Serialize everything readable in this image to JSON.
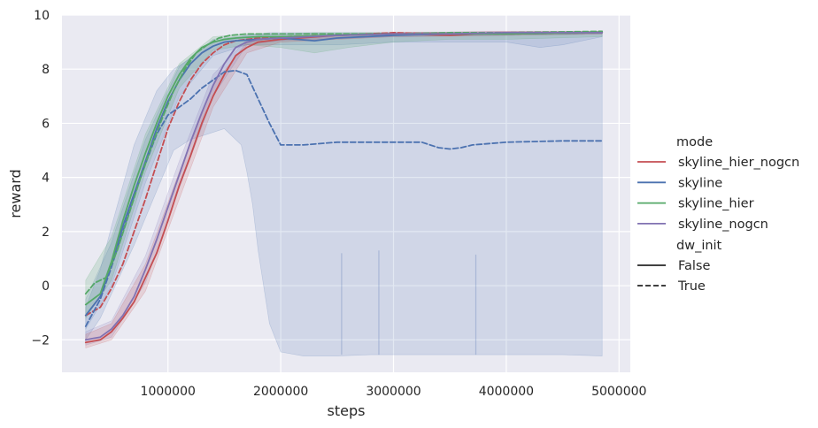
{
  "chart_data": {
    "type": "line",
    "xlabel": "steps",
    "ylabel": "reward",
    "xlim": [
      60000,
      5100000
    ],
    "ylim": [
      -3.2,
      10
    ],
    "xticks": [
      1000000,
      2000000,
      3000000,
      4000000,
      5000000
    ],
    "xtick_labels": [
      "1000000",
      "2000000",
      "3000000",
      "4000000",
      "5000000"
    ],
    "yticks": [
      -2,
      0,
      2,
      4,
      6,
      8,
      10
    ],
    "ytick_labels": [
      "−2",
      "0",
      "2",
      "4",
      "6",
      "8",
      "10"
    ],
    "grid": true,
    "legend": {
      "placement": "right",
      "mode_title": "mode",
      "style_title": "dw_init",
      "style_entries": [
        {
          "label": "False",
          "dash": "solid"
        },
        {
          "label": "True",
          "dash": "dashed"
        }
      ]
    },
    "series": [
      {
        "name": "skyline_hier_nogcn",
        "dw_init": "False",
        "color": "#c44e52",
        "x": [
          270000,
          400000,
          500000,
          600000,
          700000,
          800000,
          900000,
          1000000,
          1100000,
          1200000,
          1300000,
          1400000,
          1500000,
          1600000,
          1700000,
          1800000,
          2000000,
          2500000,
          3000000,
          3500000,
          4000000,
          4850000
        ],
        "y": [
          -2.1,
          -2.0,
          -1.7,
          -1.2,
          -0.6,
          0.3,
          1.2,
          2.4,
          3.7,
          4.8,
          6.0,
          7.0,
          7.8,
          8.5,
          8.8,
          9.0,
          9.1,
          9.25,
          9.3,
          9.25,
          9.35,
          9.35
        ]
      },
      {
        "name": "skyline_hier_nogcn",
        "dw_init": "True",
        "color": "#c44e52",
        "x": [
          270000,
          400000,
          500000,
          600000,
          700000,
          800000,
          900000,
          1000000,
          1100000,
          1200000,
          1300000,
          1400000,
          1500000,
          1600000,
          1800000,
          2000000,
          2500000,
          3000000,
          3500000,
          4000000,
          4850000
        ],
        "y": [
          -1.1,
          -0.8,
          -0.1,
          0.8,
          2.0,
          3.2,
          4.5,
          5.8,
          6.8,
          7.6,
          8.2,
          8.6,
          8.9,
          9.05,
          9.15,
          9.2,
          9.25,
          9.35,
          9.3,
          9.3,
          9.35
        ]
      },
      {
        "name": "skyline",
        "dw_init": "False",
        "color": "#4c72b0",
        "x": [
          270000,
          400000,
          500000,
          600000,
          700000,
          800000,
          900000,
          1000000,
          1100000,
          1200000,
          1300000,
          1400000,
          1500000,
          1600000,
          1800000,
          2000000,
          2300000,
          2500000,
          3000000,
          3500000,
          4000000,
          4850000
        ],
        "y": [
          -1.1,
          -0.4,
          0.8,
          2.2,
          3.4,
          4.6,
          5.8,
          6.8,
          7.6,
          8.2,
          8.6,
          8.85,
          9.0,
          9.05,
          9.1,
          9.15,
          9.05,
          9.15,
          9.25,
          9.3,
          9.3,
          9.35
        ]
      },
      {
        "name": "skyline",
        "dw_init": "True",
        "color": "#4c72b0",
        "x": [
          270000,
          400000,
          500000,
          600000,
          700000,
          800000,
          900000,
          1000000,
          1100000,
          1200000,
          1300000,
          1400000,
          1500000,
          1600000,
          1700000,
          1800000,
          1900000,
          2000000,
          2200000,
          2500000,
          3000000,
          3250000,
          3400000,
          3500000,
          3600000,
          3700000,
          4000000,
          4500000,
          4850000
        ],
        "y": [
          -1.5,
          -0.5,
          0.7,
          2.0,
          3.3,
          4.5,
          5.6,
          6.3,
          6.6,
          6.9,
          7.3,
          7.6,
          7.9,
          7.95,
          7.8,
          6.9,
          6.0,
          5.2,
          5.2,
          5.3,
          5.3,
          5.3,
          5.1,
          5.05,
          5.1,
          5.2,
          5.3,
          5.35,
          5.35
        ]
      },
      {
        "name": "skyline_hier",
        "dw_init": "False",
        "color": "#55a868",
        "x": [
          270000,
          400000,
          500000,
          600000,
          700000,
          800000,
          900000,
          1000000,
          1100000,
          1200000,
          1300000,
          1400000,
          1500000,
          1600000,
          1800000,
          2000000,
          2500000,
          3000000,
          3500000,
          4000000,
          4850000
        ],
        "y": [
          -0.7,
          -0.3,
          0.9,
          2.4,
          3.7,
          4.9,
          6.0,
          7.0,
          7.8,
          8.4,
          8.8,
          9.0,
          9.1,
          9.15,
          9.2,
          9.2,
          9.25,
          9.3,
          9.3,
          9.3,
          9.35
        ]
      },
      {
        "name": "skyline_hier",
        "dw_init": "True",
        "color": "#55a868",
        "x": [
          270000,
          350000,
          450000,
          550000,
          650000,
          750000,
          850000,
          950000,
          1050000,
          1150000,
          1250000,
          1350000,
          1450000,
          1550000,
          1700000,
          2000000,
          2500000,
          3000000,
          3500000,
          4000000,
          4850000
        ],
        "y": [
          -0.3,
          0.1,
          0.3,
          1.3,
          2.6,
          3.9,
          5.1,
          6.2,
          7.2,
          8.0,
          8.6,
          8.9,
          9.15,
          9.25,
          9.3,
          9.3,
          9.3,
          9.3,
          9.35,
          9.35,
          9.4
        ]
      },
      {
        "name": "skyline_nogcn",
        "dw_init": "False",
        "color": "#8172b2",
        "x": [
          270000,
          400000,
          500000,
          600000,
          700000,
          800000,
          900000,
          1000000,
          1100000,
          1200000,
          1300000,
          1400000,
          1500000,
          1600000,
          1700000,
          1800000,
          2000000,
          2500000,
          3000000,
          3500000,
          4000000,
          4850000
        ],
        "y": [
          -2.0,
          -1.9,
          -1.6,
          -1.1,
          -0.4,
          0.6,
          1.7,
          2.9,
          4.1,
          5.3,
          6.4,
          7.4,
          8.2,
          8.8,
          9.0,
          9.1,
          9.15,
          9.25,
          9.3,
          9.3,
          9.35,
          9.35
        ]
      }
    ],
    "bands": [
      {
        "series": "skyline / True",
        "color": "#4c72b0",
        "opacity": 0.16,
        "x": [
          270000,
          400000,
          500000,
          700000,
          900000,
          1050000,
          1200000,
          1350000,
          1500000,
          1650000,
          1700000,
          1750000,
          1800000,
          1900000,
          2000000,
          2200000,
          2500000,
          2800000,
          3000000,
          3500000,
          4000000,
          4500000,
          4850000
        ],
        "upper": [
          -0.8,
          0.6,
          2.2,
          5.2,
          7.2,
          8.0,
          8.4,
          8.9,
          9.1,
          9.2,
          9.25,
          9.3,
          9.3,
          9.35,
          9.35,
          9.35,
          9.35,
          9.35,
          9.35,
          9.35,
          9.35,
          9.35,
          9.35
        ],
        "lower": [
          -2.0,
          -1.2,
          -0.3,
          1.5,
          3.5,
          5.0,
          5.4,
          5.6,
          5.8,
          5.2,
          4.2,
          3.0,
          1.3,
          -1.4,
          -2.45,
          -2.6,
          -2.6,
          -2.55,
          -2.55,
          -2.55,
          -2.55,
          -2.55,
          -2.6
        ]
      },
      {
        "series": "skyline / False",
        "color": "#4c72b0",
        "opacity": 0.14,
        "x": [
          270000,
          500000,
          800000,
          1100000,
          1400000,
          1700000,
          2000000,
          2500000,
          3000000,
          3500000,
          4000000,
          4300000,
          4500000,
          4850000
        ],
        "upper": [
          -0.5,
          1.6,
          5.4,
          8.1,
          9.1,
          9.25,
          9.3,
          9.3,
          9.35,
          9.35,
          9.35,
          9.35,
          9.35,
          9.4
        ],
        "lower": [
          -1.6,
          0.0,
          3.8,
          7.0,
          8.5,
          8.9,
          8.9,
          8.9,
          9.0,
          9.0,
          9.0,
          8.8,
          8.9,
          9.2
        ]
      },
      {
        "series": "skyline_hier / False",
        "color": "#55a868",
        "opacity": 0.18,
        "x": [
          270000,
          500000,
          800000,
          1100000,
          1400000,
          1700000,
          2000000,
          2300000,
          2600000,
          3000000,
          3500000,
          4000000,
          4850000
        ],
        "upper": [
          0.2,
          1.8,
          5.6,
          8.2,
          9.2,
          9.3,
          9.3,
          9.35,
          9.35,
          9.35,
          9.35,
          9.35,
          9.4
        ],
        "lower": [
          -1.2,
          0.2,
          4.2,
          7.3,
          8.7,
          8.9,
          8.8,
          8.6,
          8.8,
          9.0,
          9.1,
          9.1,
          9.2
        ]
      },
      {
        "series": "skyline_nogcn / False",
        "color": "#8172b2",
        "opacity": 0.16,
        "x": [
          270000,
          500000,
          800000,
          1100000,
          1400000,
          1700000,
          2000000,
          3000000,
          4000000,
          4850000
        ],
        "upper": [
          -1.7,
          -1.3,
          1.1,
          4.6,
          7.8,
          9.1,
          9.2,
          9.35,
          9.4,
          9.4
        ],
        "lower": [
          -2.2,
          -1.9,
          0.1,
          3.6,
          7.0,
          8.9,
          9.05,
          9.2,
          9.25,
          9.3
        ]
      },
      {
        "series": "skyline_hier_nogcn / False",
        "color": "#c44e52",
        "opacity": 0.16,
        "x": [
          270000,
          500000,
          800000,
          1100000,
          1400000,
          1700000,
          2000000,
          3000000,
          4000000,
          4850000
        ],
        "upper": [
          -1.8,
          -1.4,
          0.8,
          4.2,
          7.4,
          9.0,
          9.2,
          9.35,
          9.4,
          9.4
        ],
        "lower": [
          -2.3,
          -2.0,
          -0.2,
          3.2,
          6.6,
          8.6,
          9.0,
          9.2,
          9.25,
          9.3
        ]
      }
    ],
    "spikes": [
      {
        "x": 2540000,
        "top": 1.2,
        "bottom": -2.55
      },
      {
        "x": 2870000,
        "top": 1.3,
        "bottom": -2.55
      },
      {
        "x": 3730000,
        "top": 1.15,
        "bottom": -2.55
      }
    ]
  }
}
